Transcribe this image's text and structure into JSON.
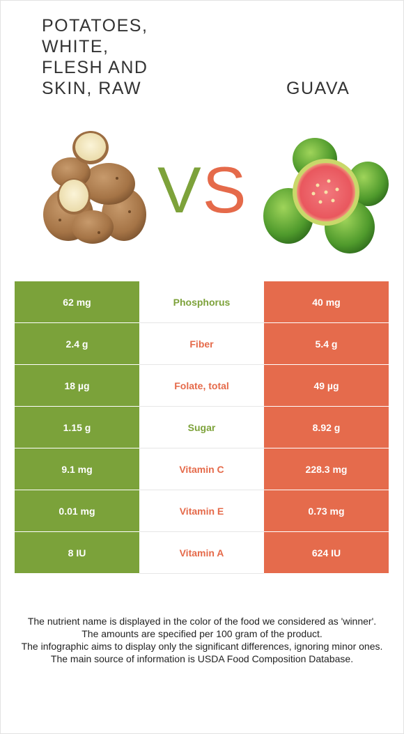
{
  "left_food": {
    "name": "Potatoes, white, flesh and skin, raw",
    "color": "#7ba23a"
  },
  "right_food": {
    "name": "Guava",
    "color": "#e56b4c"
  },
  "vs": {
    "v": "V",
    "s": "S"
  },
  "rows": [
    {
      "left": "62 mg",
      "nutrient": "Phosphorus",
      "right": "40 mg",
      "winner": "left"
    },
    {
      "left": "2.4 g",
      "nutrient": "Fiber",
      "right": "5.4 g",
      "winner": "right"
    },
    {
      "left": "18 µg",
      "nutrient": "Folate, total",
      "right": "49 µg",
      "winner": "right"
    },
    {
      "left": "1.15 g",
      "nutrient": "Sugar",
      "right": "8.92 g",
      "winner": "left"
    },
    {
      "left": "9.1 mg",
      "nutrient": "Vitamin C",
      "right": "228.3 mg",
      "winner": "right"
    },
    {
      "left": "0.01 mg",
      "nutrient": "Vitamin E",
      "right": "0.73 mg",
      "winner": "right"
    },
    {
      "left": "8 IU",
      "nutrient": "Vitamin A",
      "right": "624 IU",
      "winner": "right"
    }
  ],
  "footer": {
    "line1": "The nutrient name is displayed in the color of the food we considered as 'winner'.",
    "line2": "The amounts are specified per 100 gram of the product.",
    "line3": "The infographic aims to display only the significant differences, ignoring minor ones.",
    "line4": "The main source of information is USDA Food Composition Database."
  }
}
